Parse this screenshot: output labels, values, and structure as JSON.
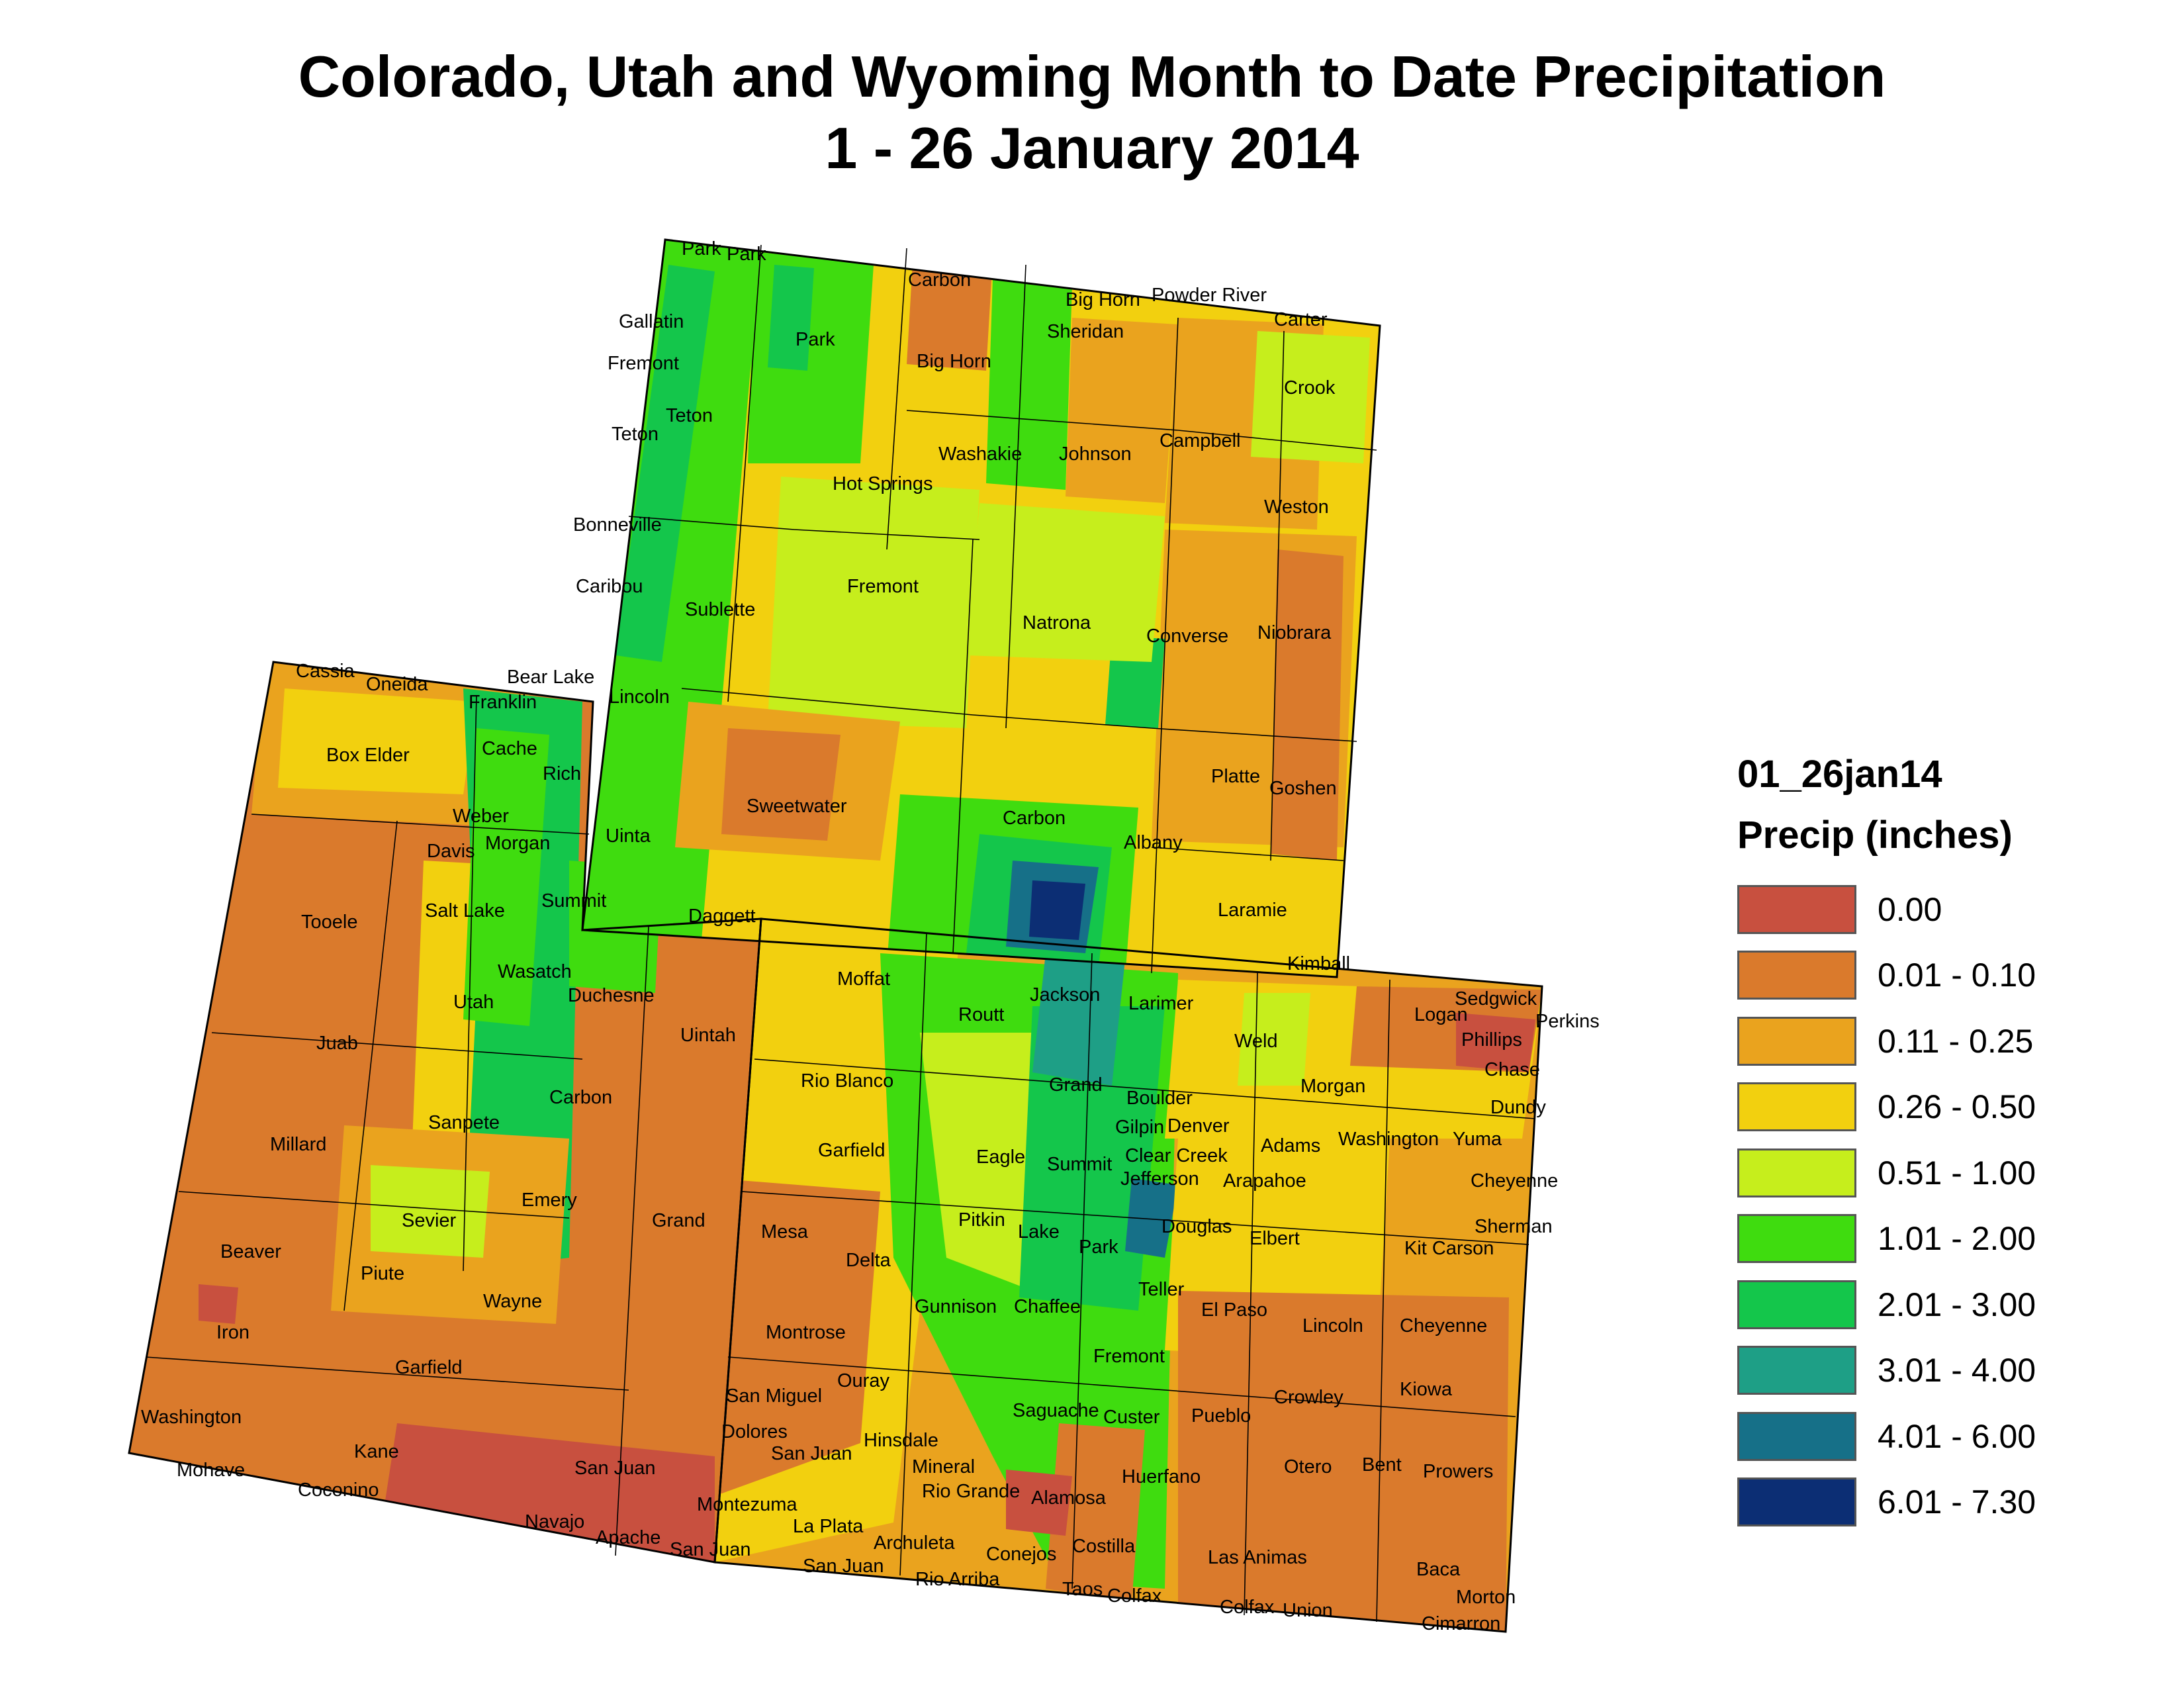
{
  "title": {
    "line1": "Colorado, Utah and Wyoming Month to Date Precipitation",
    "line2": "1 - 26 January 2014"
  },
  "legend": {
    "layer_id": "01_26jan14",
    "unit_label": "Precip (inches)",
    "classes": [
      {
        "label": "0.00",
        "color": "#c8503f"
      },
      {
        "label": "0.01 - 0.10",
        "color": "#da7a2c"
      },
      {
        "label": "0.11 - 0.25",
        "color": "#eaa31e"
      },
      {
        "label": "0.26 - 0.50",
        "color": "#f2d00f"
      },
      {
        "label": "0.51 - 1.00",
        "color": "#c6ee1c"
      },
      {
        "label": "1.01 - 2.00",
        "color": "#3fdc0f"
      },
      {
        "label": "2.01 - 3.00",
        "color": "#14c64b"
      },
      {
        "label": "3.01 - 4.00",
        "color": "#1e9f86"
      },
      {
        "label": "4.01 - 6.00",
        "color": "#167088"
      },
      {
        "label": "6.01 - 7.30",
        "color": "#0c2e74"
      }
    ]
  },
  "county_labels": [
    "Park",
    "Park",
    "Carbon",
    "Big Horn",
    "Powder River",
    "Carter",
    "Gallatin",
    "Park",
    "Sheridan",
    "Fremont",
    "Big Horn",
    "Crook",
    "Teton",
    "Teton",
    "Washakie",
    "Johnson",
    "Campbell",
    "Hot Springs",
    "Weston",
    "Bonneville",
    "Caribou",
    "Fremont",
    "Sublette",
    "Natrona",
    "Converse",
    "Niobrara",
    "Cassia",
    "Oneida",
    "Bear Lake",
    "Franklin",
    "Lincoln",
    "Box Elder",
    "Cache",
    "Rich",
    "Sweetwater",
    "Platte",
    "Goshen",
    "Weber",
    "Carbon",
    "Davis",
    "Morgan",
    "Uinta",
    "Albany",
    "Tooele",
    "Salt Lake",
    "Summit",
    "Daggett",
    "Laramie",
    "Wasatch",
    "Kimball",
    "Moffat",
    "Utah",
    "Duchesne",
    "Jackson",
    "Larimer",
    "Sedgwick",
    "Logan",
    "Perkins",
    "Phillips",
    "Routt",
    "Uintah",
    "Juab",
    "Weld",
    "Chase",
    "Rio Blanco",
    "Grand",
    "Morgan",
    "Carbon",
    "Dundy",
    "Boulder",
    "Sanpete",
    "Washington",
    "Yuma",
    "Gilpin",
    "Denver",
    "Millard",
    "Garfield",
    "Adams",
    "Eagle",
    "Summit",
    "Clear Creek",
    "Jefferson",
    "Arapahoe",
    "Cheyenne",
    "Emery",
    "Sevier",
    "Grand",
    "Mesa",
    "Pitkin",
    "Douglas",
    "Lake",
    "Sherman",
    "Elbert",
    "Kit Carson",
    "Beaver",
    "Park",
    "Delta",
    "Piute",
    "Teller",
    "Wayne",
    "Gunnison",
    "Chaffee",
    "El Paso",
    "Lincoln",
    "Cheyenne",
    "Iron",
    "Montrose",
    "Garfield",
    "Fremont",
    "Ouray",
    "Crowley",
    "Kiowa",
    "San Miguel",
    "Saguache",
    "Custer",
    "Pueblo",
    "Washington",
    "Dolores",
    "Hinsdale",
    "Kane",
    "San Juan",
    "Otero",
    "Bent",
    "Prowers",
    "Mineral",
    "Huerfano",
    "San Juan",
    "Mohave",
    "Coconino",
    "Rio Grande",
    "Alamosa",
    "Montezuma",
    "La Plata",
    "Navajo",
    "Apache",
    "Archuleta",
    "Costilla",
    "Las Animas",
    "San Juan",
    "Conejos",
    "Baca",
    "San Juan",
    "Rio Arriba",
    "Taos",
    "Colfax",
    "Colfax",
    "Union",
    "Morton",
    "Cimarron"
  ]
}
